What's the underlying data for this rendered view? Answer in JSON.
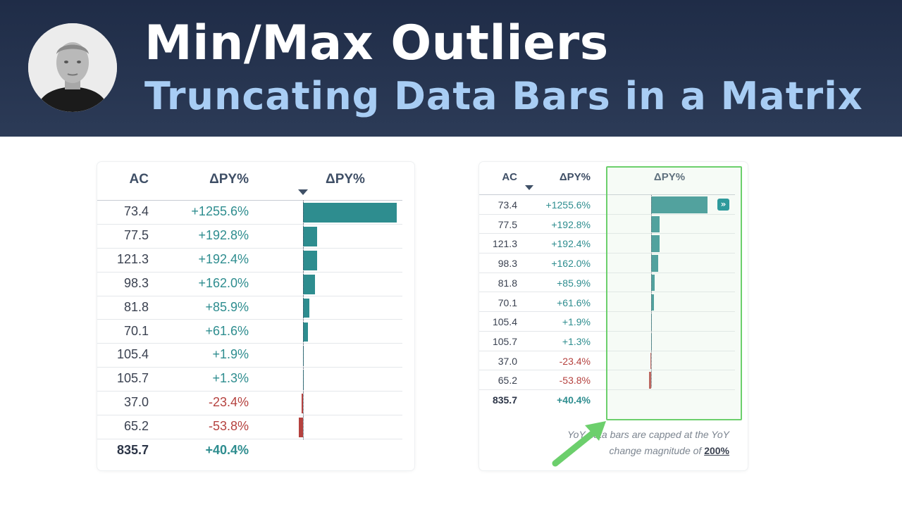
{
  "header": {
    "title": "Min/Max Outliers",
    "subtitle": "Truncating Data Bars in a Matrix",
    "avatar": "presenter-photo"
  },
  "colors": {
    "banner": "#1f2c47",
    "subtitle": "#a8cdf4",
    "positive": "#2e8d8f",
    "negative": "#b5423f",
    "highlight": "#6ccf6c",
    "arrow": "#6ccf6c"
  },
  "left_table": {
    "columns": [
      "AC",
      "ΔPY%",
      "ΔPY%"
    ],
    "sort_icon": "sort-descending-icon",
    "rows": [
      {
        "ac": "73.4",
        "pct": "+1255.6%",
        "value": 1255.6
      },
      {
        "ac": "77.5",
        "pct": "+192.8%",
        "value": 192.8
      },
      {
        "ac": "121.3",
        "pct": "+192.4%",
        "value": 192.4
      },
      {
        "ac": "98.3",
        "pct": "+162.0%",
        "value": 162.0
      },
      {
        "ac": "81.8",
        "pct": "+85.9%",
        "value": 85.9
      },
      {
        "ac": "70.1",
        "pct": "+61.6%",
        "value": 61.6
      },
      {
        "ac": "105.4",
        "pct": "+1.9%",
        "value": 1.9
      },
      {
        "ac": "105.7",
        "pct": "+1.3%",
        "value": 1.3
      },
      {
        "ac": "37.0",
        "pct": "-23.4%",
        "value": -23.4
      },
      {
        "ac": "65.2",
        "pct": "-53.8%",
        "value": -53.8
      }
    ],
    "total": {
      "ac": "835.7",
      "pct": "+40.4%"
    }
  },
  "right_table": {
    "columns": [
      "AC",
      "ΔPY%",
      "ΔPY%"
    ],
    "sort_icon": "sort-descending-icon",
    "cap": 200,
    "cap_indicator_icon": "double-chevron-right-icon",
    "rows": [
      {
        "ac": "73.4",
        "pct": "+1255.6%",
        "value": 1255.6
      },
      {
        "ac": "77.5",
        "pct": "+192.8%",
        "value": 192.8
      },
      {
        "ac": "121.3",
        "pct": "+192.4%",
        "value": 192.4
      },
      {
        "ac": "98.3",
        "pct": "+162.0%",
        "value": 162.0
      },
      {
        "ac": "81.8",
        "pct": "+85.9%",
        "value": 85.9
      },
      {
        "ac": "70.1",
        "pct": "+61.6%",
        "value": 61.6
      },
      {
        "ac": "105.4",
        "pct": "+1.9%",
        "value": 1.9
      },
      {
        "ac": "105.7",
        "pct": "+1.3%",
        "value": 1.3
      },
      {
        "ac": "37.0",
        "pct": "-23.4%",
        "value": -23.4
      },
      {
        "ac": "65.2",
        "pct": "-53.8%",
        "value": -53.8
      }
    ],
    "total": {
      "ac": "835.7",
      "pct": "+40.4%"
    }
  },
  "note": {
    "line1": "YoY data bars are capped at the YoY",
    "line2_prefix": "change magnitude of ",
    "cap_value": "200%"
  }
}
